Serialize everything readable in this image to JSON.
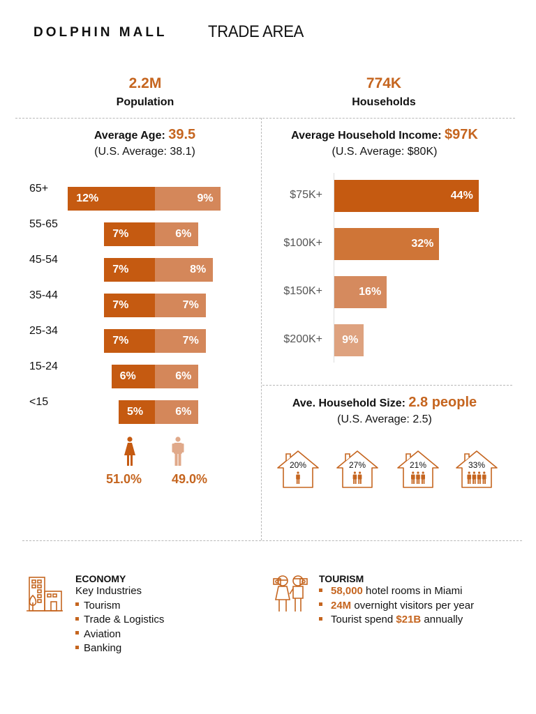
{
  "header": {
    "brand": "DOLPHIN MALL",
    "title": "TRADE AREA"
  },
  "kpis": {
    "population": {
      "value": "2.2M",
      "label": "Population"
    },
    "households": {
      "value": "774K",
      "label": "Households"
    }
  },
  "age": {
    "title": "Average Age: ",
    "value": "39.5",
    "us_average": "(U.S. Average: 38.1)"
  },
  "income": {
    "title": "Average Household Income: ",
    "value": "$97K",
    "us_average": "(U.S. Average: $80K)"
  },
  "household_size": {
    "title": "Ave. Household Size: ",
    "value": "2.8 people",
    "us_average": "(U.S. Average: 2.5)",
    "houses": [
      {
        "pct": "20%",
        "people": 1
      },
      {
        "pct": "27%",
        "people": 2
      },
      {
        "pct": "21%",
        "people": 3
      },
      {
        "pct": "33%",
        "people": 4
      }
    ]
  },
  "gender": {
    "female_pct": "51.0%",
    "male_pct": "49.0%",
    "female_icon": "female-figure-icon",
    "male_icon": "male-figure-icon"
  },
  "colors": {
    "accent": "#c5651f",
    "female_bar": "#c55a11",
    "male_bar": "#d4875a",
    "income_bars": [
      "#c55a11",
      "#cf7537",
      "#d58a5e",
      "#dea27f"
    ]
  },
  "chart_data": [
    {
      "type": "bar",
      "title": "Average Age: 39.5",
      "subtitle": "(U.S. Average: 38.1)",
      "orientation": "horizontal-butterfly",
      "categories": [
        "65+",
        "55-65",
        "45-54",
        "35-44",
        "25-34",
        "15-24",
        "<15"
      ],
      "series": [
        {
          "name": "Female",
          "values": [
            12,
            7,
            7,
            7,
            7,
            6,
            5
          ],
          "labels": [
            "12%",
            "7%",
            "7%",
            "7%",
            "7%",
            "6%",
            "5%"
          ]
        },
        {
          "name": "Male",
          "values": [
            9,
            6,
            8,
            7,
            7,
            6,
            6
          ],
          "labels": [
            "9%",
            "6%",
            "8%",
            "7%",
            "7%",
            "6%",
            "6%"
          ]
        }
      ],
      "unit": "%",
      "xlabel": "",
      "ylabel": "",
      "grid": false
    },
    {
      "type": "bar",
      "title": "Average Household Income: $97K",
      "subtitle": "(U.S. Average: $80K)",
      "orientation": "horizontal",
      "categories": [
        "$75K+",
        "$100K+",
        "$150K+",
        "$200K+"
      ],
      "values": [
        44,
        32,
        16,
        9
      ],
      "labels": [
        "44%",
        "32%",
        "16%",
        "9%"
      ],
      "unit": "%",
      "xlabel": "",
      "ylabel": "",
      "xlim": [
        0,
        50
      ],
      "grid": false
    }
  ],
  "economy": {
    "icon": "city-buildings-icon",
    "title": "ECONOMY",
    "subtitle": "Key Industries",
    "items": [
      "Tourism",
      "Trade & Logistics",
      "Aviation",
      "Banking"
    ]
  },
  "tourism": {
    "icon": "tourists-icon",
    "title": "TOURISM",
    "items": [
      {
        "pre": "",
        "accent": "58,000",
        "post": " hotel rooms in Miami"
      },
      {
        "pre": "",
        "accent": "24M",
        "post": " overnight visitors per year"
      },
      {
        "pre": "Tourist spend ",
        "accent": "$21B",
        "post": " annually"
      }
    ]
  }
}
